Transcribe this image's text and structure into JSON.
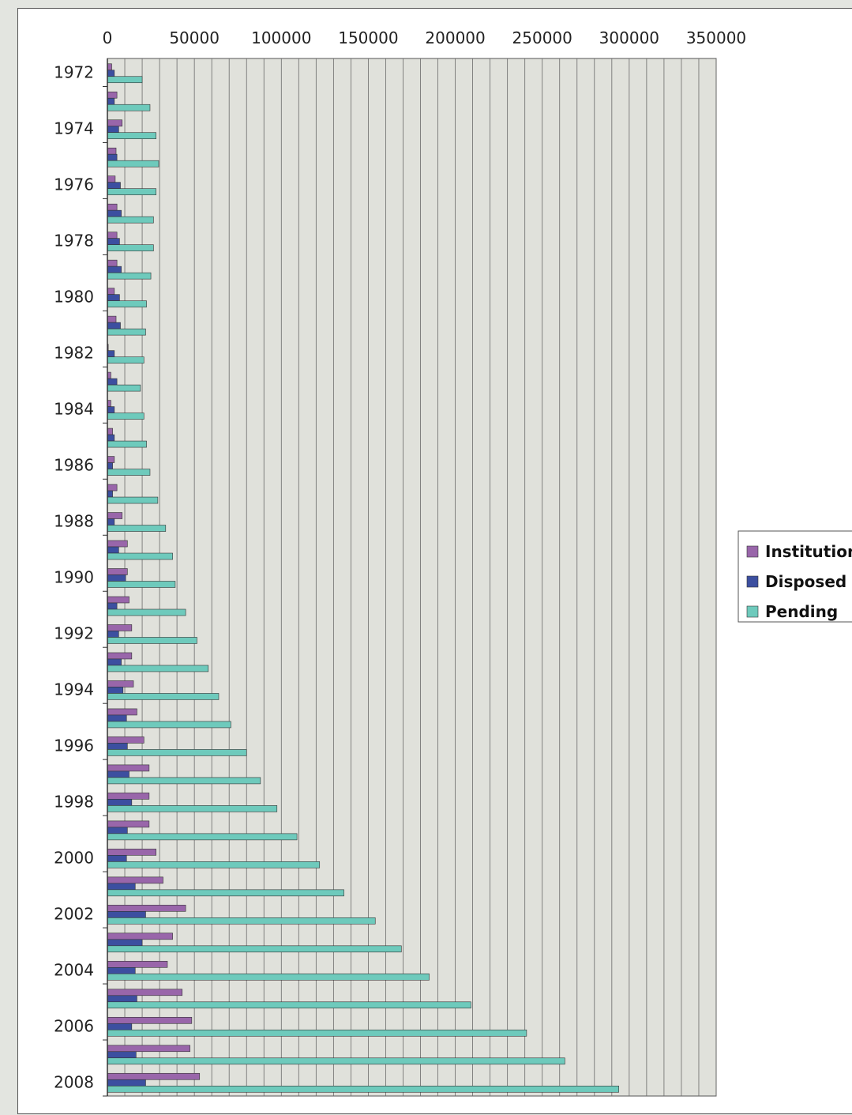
{
  "chart_data": {
    "type": "bar",
    "orientation": "horizontal",
    "categories": [
      "1972",
      "1973",
      "1974",
      "1975",
      "1976",
      "1977",
      "1978",
      "1979",
      "1980",
      "1981",
      "1982",
      "1983",
      "1984",
      "1985",
      "1986",
      "1987",
      "1988",
      "1989",
      "1990",
      "1991",
      "1992",
      "1993",
      "1994",
      "1995",
      "1996",
      "1997",
      "1998",
      "1999",
      "2000",
      "2001",
      "2002",
      "2003",
      "2004",
      "2005",
      "2006",
      "2007",
      "2008"
    ],
    "category_tick_labels": [
      "1972",
      "1974",
      "1976",
      "1978",
      "1980",
      "1982",
      "1984",
      "1986",
      "1988",
      "1990",
      "1992",
      "1994",
      "1996",
      "1998",
      "2000",
      "2002",
      "2004",
      "2006",
      "2008"
    ],
    "x_ticks": [
      "0",
      "50000",
      "100000",
      "150000",
      "200000",
      "250000",
      "300000",
      "350000"
    ],
    "xlim": [
      0,
      350000
    ],
    "x_gridline_step": 10000,
    "grid": true,
    "legend_position": "right",
    "series": [
      {
        "name": "Institution",
        "color": "#9966aa",
        "values": [
          2500,
          5500,
          8500,
          5000,
          4500,
          5500,
          5500,
          5500,
          4000,
          5000,
          500,
          2000,
          2000,
          3000,
          4000,
          5500,
          8500,
          11500,
          11500,
          12500,
          14000,
          14000,
          15000,
          17000,
          21000,
          24000,
          24000,
          24000,
          28000,
          32000,
          45000,
          37500,
          34500,
          43000,
          48500,
          47500,
          53000
        ]
      },
      {
        "name": "Disposed of",
        "color": "#3c4fa0",
        "values": [
          4000,
          4000,
          6500,
          5500,
          7500,
          8000,
          7000,
          8000,
          7000,
          7500,
          4000,
          5500,
          4000,
          4000,
          3000,
          3000,
          4000,
          6500,
          10500,
          5500,
          6500,
          8000,
          9000,
          11000,
          11500,
          12500,
          14000,
          11500,
          11000,
          16000,
          22000,
          20000,
          16000,
          17000,
          14000,
          16500,
          22000
        ]
      },
      {
        "name": "Pending",
        "color": "#6ecabc",
        "values": [
          20000,
          24500,
          28000,
          29500,
          28000,
          26500,
          26500,
          25000,
          22500,
          22000,
          21000,
          19000,
          21000,
          22500,
          24500,
          29000,
          33500,
          37500,
          39000,
          45000,
          51500,
          58000,
          64000,
          71000,
          80000,
          88000,
          97500,
          109000,
          122000,
          136000,
          154000,
          169000,
          185000,
          209000,
          241000,
          263000,
          294000
        ]
      }
    ]
  }
}
